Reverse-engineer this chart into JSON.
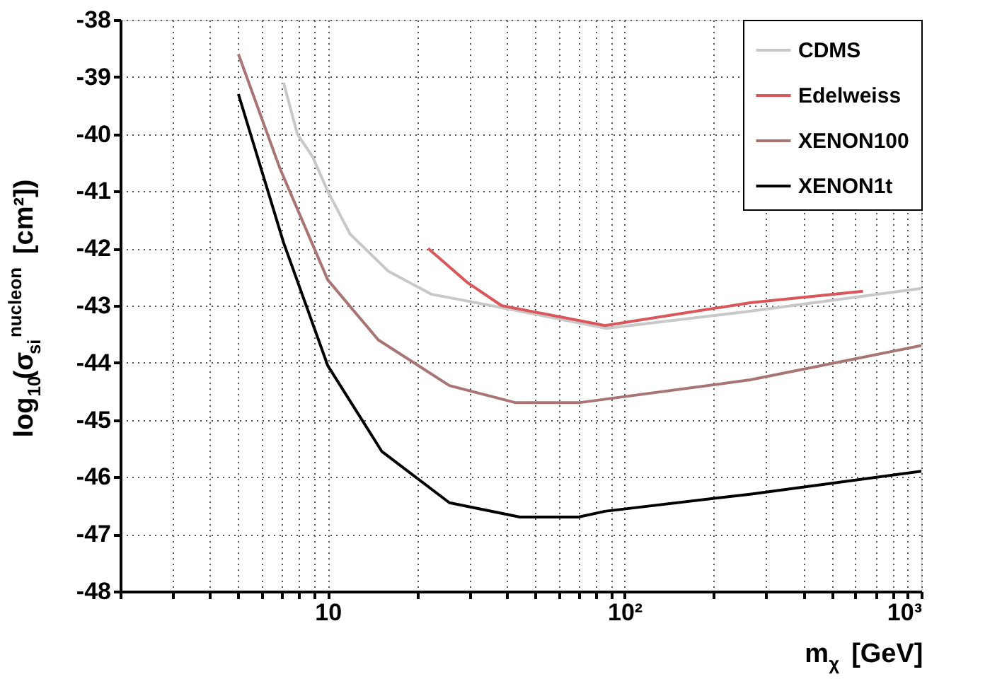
{
  "chart_data": {
    "type": "line",
    "xlabel": "m$_{χ}$ [GeV]",
    "ylabel": "log$_{10}$(σ$_{si}$$^{nucleon}$ [cm²])",
    "log": "x",
    "grid": true,
    "legend": "top right",
    "line_style": "solid",
    "marker": "none",
    "xlim": [
      2,
      1000
    ],
    "xticks": [
      {
        "value": 2,
        "label": null
      },
      {
        "value": 3,
        "label": null
      },
      {
        "value": 4,
        "label": null
      },
      {
        "value": 5,
        "label": null
      },
      {
        "value": 6,
        "label": null
      },
      {
        "value": 7,
        "label": null
      },
      {
        "value": 8,
        "label": null
      },
      {
        "value": 9,
        "label": null
      },
      {
        "value": 10,
        "label": "10"
      },
      {
        "value": 20,
        "label": null
      },
      {
        "value": 30,
        "label": null
      },
      {
        "value": 40,
        "label": null
      },
      {
        "value": 50,
        "label": null
      },
      {
        "value": 60,
        "label": null
      },
      {
        "value": 70,
        "label": null
      },
      {
        "value": 80,
        "label": null
      },
      {
        "value": 90,
        "label": null
      },
      {
        "value": 100,
        "label": "10²"
      },
      {
        "value": 200,
        "label": null
      },
      {
        "value": 300,
        "label": null
      },
      {
        "value": 400,
        "label": null
      },
      {
        "value": 500,
        "label": null
      },
      {
        "value": 600,
        "label": null
      },
      {
        "value": 700,
        "label": null
      },
      {
        "value": 800,
        "label": null
      },
      {
        "value": 900,
        "label": null
      },
      {
        "value": 1000,
        "label": "10³"
      }
    ],
    "ylim": [
      -48,
      -38
    ],
    "yticks": [
      -48,
      -47,
      -46,
      -45,
      -44,
      -43,
      -42,
      -41,
      -40,
      -39,
      -38
    ],
    "series": [
      {
        "name": "CDMS",
        "color": "#c8c8c8",
        "x": [
          7.1,
          7.9,
          8.9,
          10,
          11.9,
          16,
          22.3,
          39.8,
          87,
          265,
          1000
        ],
        "values": [
          -39.1,
          -40.0,
          -40.4,
          -41.0,
          -41.75,
          -42.4,
          -42.8,
          -43.05,
          -43.4,
          -43.1,
          -42.7
        ]
      },
      {
        "name": "Edelweiss",
        "color": "#d9575a",
        "x": [
          21.8,
          29.6,
          38.5,
          86,
          265,
          636
        ],
        "values": [
          -42.0,
          -42.6,
          -43.0,
          -43.35,
          -42.95,
          -42.75
        ]
      },
      {
        "name": "XENON100",
        "color": "#a87474",
        "x": [
          5,
          6.9,
          10,
          14.8,
          25.7,
          43,
          70,
          265,
          1000
        ],
        "values": [
          -38.6,
          -40.6,
          -42.55,
          -43.6,
          -44.4,
          -44.7,
          -44.7,
          -44.3,
          -43.7
        ]
      },
      {
        "name": "XENON1t",
        "color": "#000000",
        "x": [
          5,
          7.1,
          10,
          15.2,
          25.7,
          44.4,
          70,
          85.8,
          265,
          1000
        ],
        "values": [
          -39.3,
          -41.9,
          -44.05,
          -45.55,
          -46.45,
          -46.7,
          -46.7,
          -46.6,
          -46.3,
          -45.9
        ]
      }
    ]
  }
}
